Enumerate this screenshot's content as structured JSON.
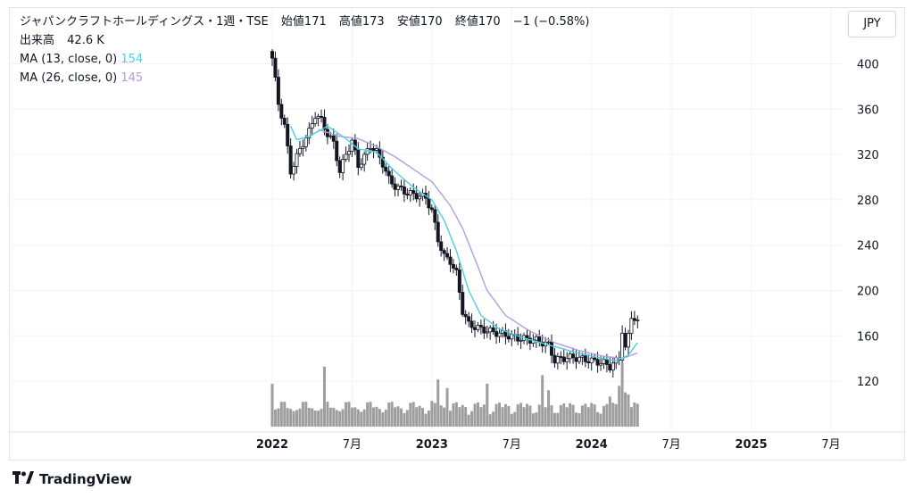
{
  "header": {
    "title": "ジャパンクラフトホールディングス・1週・TSE",
    "open": "始値171",
    "high": "高値173",
    "low": "安値170",
    "close": "終値170",
    "change": "−1 (−0.58%)",
    "volume_label": "出来高",
    "volume_value": "42.6 K",
    "ma13_label": "MA (13, close, 0)",
    "ma13_value": "154",
    "ma26_label": "MA (26, close, 0)",
    "ma26_value": "145"
  },
  "currency_button": "JPY",
  "brand": "TradingView",
  "colors": {
    "ma13": "#4dd0e1",
    "ma26": "#b39ddb",
    "candle": "#131722",
    "volume": "#9e9e9e",
    "grid": "#f0f3fa"
  },
  "chart_data": {
    "type": "candlestick",
    "interval": "weekly",
    "y_ticks": [
      400,
      360,
      320,
      280,
      240,
      200,
      160,
      120
    ],
    "ylim": [
      95,
      420
    ],
    "x_ticks": [
      {
        "label": "2022",
        "t": 0,
        "bold": true
      },
      {
        "label": "7月",
        "t": 26,
        "bold": false
      },
      {
        "label": "2023",
        "t": 52,
        "bold": true
      },
      {
        "label": "7月",
        "t": 78,
        "bold": false
      },
      {
        "label": "2024",
        "t": 104,
        "bold": true
      },
      {
        "label": "7月",
        "t": 130,
        "bold": false
      },
      {
        "label": "2025",
        "t": 156,
        "bold": true
      },
      {
        "label": "7月",
        "t": 182,
        "bold": false
      }
    ],
    "close_anchors": [
      [
        0,
        405
      ],
      [
        2,
        365
      ],
      [
        4,
        345
      ],
      [
        6,
        305
      ],
      [
        8,
        318
      ],
      [
        10,
        330
      ],
      [
        12,
        340
      ],
      [
        14,
        355
      ],
      [
        16,
        350
      ],
      [
        18,
        338
      ],
      [
        20,
        330
      ],
      [
        22,
        305
      ],
      [
        24,
        320
      ],
      [
        26,
        332
      ],
      [
        28,
        310
      ],
      [
        30,
        318
      ],
      [
        32,
        328
      ],
      [
        34,
        322
      ],
      [
        36,
        312
      ],
      [
        38,
        298
      ],
      [
        40,
        292
      ],
      [
        44,
        286
      ],
      [
        50,
        282
      ],
      [
        52,
        270
      ],
      [
        54,
        245
      ],
      [
        56,
        230
      ],
      [
        58,
        226
      ],
      [
        60,
        215
      ],
      [
        62,
        182
      ],
      [
        64,
        170
      ],
      [
        68,
        166
      ],
      [
        74,
        162
      ],
      [
        80,
        158
      ],
      [
        86,
        156
      ],
      [
        90,
        152
      ],
      [
        92,
        138
      ],
      [
        94,
        140
      ],
      [
        98,
        141
      ],
      [
        104,
        138
      ],
      [
        108,
        136
      ],
      [
        110,
        133
      ],
      [
        113,
        140
      ],
      [
        114,
        165
      ],
      [
        115,
        148
      ],
      [
        116,
        160
      ],
      [
        117,
        178
      ],
      [
        118,
        175
      ],
      [
        119,
        171
      ]
    ],
    "ma13_anchors": [
      [
        6,
        345
      ],
      [
        8,
        333
      ],
      [
        12,
        336
      ],
      [
        18,
        345
      ],
      [
        24,
        334
      ],
      [
        28,
        325
      ],
      [
        34,
        322
      ],
      [
        40,
        305
      ],
      [
        46,
        291
      ],
      [
        52,
        280
      ],
      [
        56,
        262
      ],
      [
        60,
        235
      ],
      [
        64,
        200
      ],
      [
        68,
        178
      ],
      [
        74,
        166
      ],
      [
        82,
        158
      ],
      [
        90,
        152
      ],
      [
        98,
        146
      ],
      [
        106,
        141
      ],
      [
        112,
        138
      ],
      [
        116,
        143
      ],
      [
        119,
        154
      ]
    ],
    "ma26_anchors": [
      [
        15,
        342
      ],
      [
        22,
        336
      ],
      [
        28,
        334
      ],
      [
        34,
        327
      ],
      [
        40,
        318
      ],
      [
        46,
        307
      ],
      [
        52,
        296
      ],
      [
        58,
        275
      ],
      [
        62,
        255
      ],
      [
        66,
        228
      ],
      [
        70,
        200
      ],
      [
        76,
        178
      ],
      [
        84,
        164
      ],
      [
        92,
        154
      ],
      [
        100,
        147
      ],
      [
        108,
        142
      ],
      [
        114,
        140
      ],
      [
        119,
        145
      ]
    ],
    "volume_spikes": [
      [
        0,
        1.0
      ],
      [
        17,
        1.4
      ],
      [
        52,
        0.6
      ],
      [
        53,
        0.55
      ],
      [
        54,
        1.1
      ],
      [
        57,
        0.9
      ],
      [
        70,
        1.0
      ],
      [
        88,
        1.2
      ],
      [
        90,
        0.85
      ],
      [
        110,
        0.7
      ],
      [
        113,
        0.95
      ],
      [
        114,
        1.5
      ],
      [
        115,
        0.8
      ],
      [
        116,
        0.75
      ]
    ]
  }
}
